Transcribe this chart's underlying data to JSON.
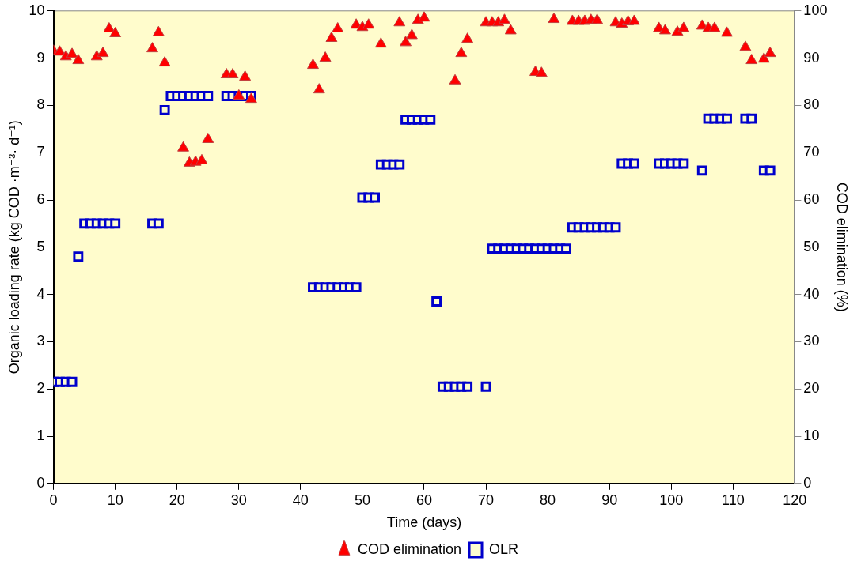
{
  "chart_data": {
    "type": "scatter",
    "xlabel": "Time (days)",
    "ylabel": "Organic loading rate (kg COD ·m⁻³· d⁻¹)",
    "y2label": "COD elimination (%)",
    "xlim": [
      0,
      120
    ],
    "xticks": [
      0,
      10,
      20,
      30,
      40,
      50,
      60,
      70,
      80,
      90,
      100,
      110,
      120
    ],
    "ylim": [
      0,
      10
    ],
    "yticks": [
      0,
      1,
      2,
      3,
      4,
      5,
      6,
      7,
      8,
      9,
      10
    ],
    "y2lim": [
      0,
      100
    ],
    "y2ticks": [
      0,
      10,
      20,
      30,
      40,
      50,
      60,
      70,
      80,
      90,
      100
    ],
    "grid": false,
    "legend": "bottom",
    "series": [
      {
        "name": "OLR",
        "color": "#0000cc",
        "marker": "square",
        "x": [
          0,
          1,
          2,
          3,
          4,
          5,
          6,
          7,
          8,
          9,
          10,
          16,
          17,
          18,
          19,
          20,
          21,
          22,
          23,
          24,
          25,
          28,
          29,
          30,
          31,
          32,
          42,
          43,
          44,
          45,
          46,
          47,
          48,
          49,
          50,
          51,
          52,
          53,
          54,
          55,
          56,
          57,
          58,
          59,
          60,
          61,
          62,
          63,
          64,
          65,
          66,
          67,
          70,
          71,
          72,
          73,
          74,
          75,
          76,
          77,
          78,
          79,
          80,
          81,
          82,
          83,
          84,
          85,
          86,
          87,
          88,
          89,
          90,
          91,
          92,
          93,
          94,
          98,
          99,
          100,
          101,
          102,
          105,
          106,
          107,
          108,
          109,
          112,
          113,
          115,
          116
        ],
        "values": [
          2.15,
          2.15,
          2.15,
          2.15,
          4.8,
          5.5,
          5.5,
          5.5,
          5.5,
          5.5,
          5.5,
          5.5,
          5.5,
          7.9,
          8.2,
          8.2,
          8.2,
          8.2,
          8.2,
          8.2,
          8.2,
          8.2,
          8.2,
          8.2,
          8.2,
          8.2,
          4.15,
          4.15,
          4.15,
          4.15,
          4.15,
          4.15,
          4.15,
          4.15,
          6.05,
          6.05,
          6.05,
          6.75,
          6.75,
          6.75,
          6.75,
          7.7,
          7.7,
          7.7,
          7.7,
          7.7,
          3.85,
          2.05,
          2.05,
          2.05,
          2.05,
          2.05,
          2.05,
          4.97,
          4.97,
          4.97,
          4.97,
          4.97,
          4.97,
          4.97,
          4.97,
          4.97,
          4.97,
          4.97,
          4.97,
          4.97,
          5.42,
          5.42,
          5.42,
          5.42,
          5.42,
          5.42,
          5.42,
          5.42,
          6.77,
          6.77,
          6.77,
          6.77,
          6.77,
          6.77,
          6.77,
          6.77,
          6.62,
          7.72,
          7.72,
          7.72,
          7.72,
          7.72,
          7.72,
          6.62,
          6.62
        ]
      },
      {
        "name": "COD elimination",
        "color": "#ff0000",
        "marker": "triangle",
        "axis": "y2",
        "x": [
          0,
          1,
          2,
          3,
          4,
          7,
          8,
          9,
          10,
          16,
          17,
          18,
          21,
          22,
          23,
          24,
          25,
          28,
          29,
          30,
          31,
          32,
          42,
          43,
          44,
          45,
          46,
          49,
          50,
          51,
          53,
          56,
          57,
          58,
          59,
          60,
          65,
          66,
          67,
          70,
          71,
          72,
          73,
          74,
          78,
          79,
          81,
          84,
          85,
          86,
          87,
          88,
          91,
          92,
          93,
          94,
          98,
          99,
          101,
          102,
          105,
          106,
          107,
          109,
          112,
          113,
          115,
          116
        ],
        "values": [
          91.5,
          91.3,
          90.3,
          90.8,
          89.5,
          90.3,
          91,
          96.2,
          95.2,
          92,
          95.4,
          89,
          71,
          67.8,
          68,
          68.3,
          72.8,
          86.5,
          86.5,
          82,
          86,
          81.3,
          88.5,
          83.3,
          90,
          94.2,
          96.2,
          97,
          96.5,
          97,
          93,
          97.5,
          93.3,
          94.8,
          98,
          98.5,
          85.2,
          91,
          94,
          97.5,
          97.5,
          97.5,
          98,
          95.8,
          87,
          86.8,
          98.2,
          97.8,
          97.8,
          97.8,
          98,
          98,
          97.5,
          97.2,
          97.7,
          97.8,
          96.3,
          95.8,
          95.5,
          96.3,
          96.8,
          96.3,
          96.3,
          95.3,
          92.3,
          89.5,
          89.8,
          91
        ]
      }
    ]
  }
}
